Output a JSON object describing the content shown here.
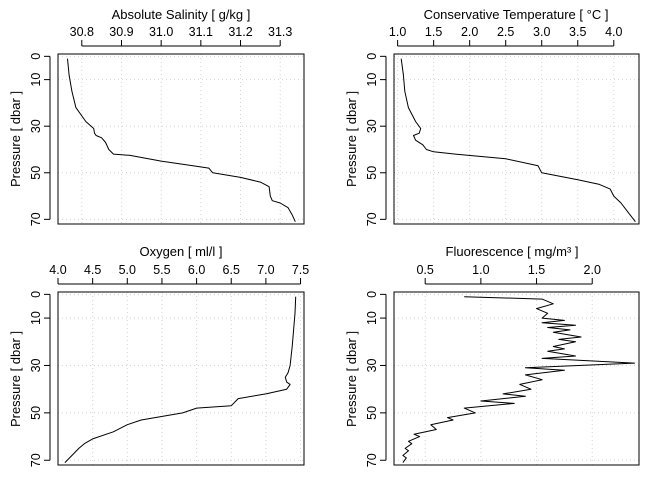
{
  "chart_data": [
    {
      "type": "line",
      "title": "Absolute Salinity [ g/kg ]",
      "xlabel": "Absolute Salinity [ g/kg ]",
      "ylabel": "Pressure [ dbar ]",
      "xlim": [
        30.74,
        31.36
      ],
      "ylim": [
        72,
        -1
      ],
      "xticks": [
        "30.8",
        "30.9",
        "31.0",
        "31.1",
        "31.2",
        "31.3"
      ],
      "yticks": [
        "0",
        "10",
        "30",
        "50",
        "70"
      ],
      "grid": true,
      "x_axis_position": "top",
      "series": [
        {
          "x": [
            30.764,
            30.768,
            30.775,
            30.785,
            30.81,
            30.83,
            30.832,
            30.836,
            30.85,
            30.86,
            30.868,
            30.88,
            30.92,
            31.0,
            31.08,
            31.12,
            31.13,
            31.2,
            31.25,
            31.272,
            31.275,
            31.28,
            31.3,
            31.32,
            31.33,
            31.338
          ],
          "y": [
            1,
            8,
            15,
            22,
            28,
            31,
            33,
            34,
            35,
            37,
            40,
            42,
            42.5,
            45,
            47,
            48,
            50,
            52,
            54,
            56,
            60,
            62,
            63,
            65,
            68,
            71
          ]
        }
      ]
    },
    {
      "type": "line",
      "title": "Conservative Temperature [ °C ]",
      "xlabel": "Conservative Temperature [ °C ]",
      "ylabel": "Pressure [ dbar ]",
      "xlim": [
        0.95,
        4.35
      ],
      "ylim": [
        72,
        -1
      ],
      "xticks": [
        "1.0",
        "1.5",
        "2.0",
        "2.5",
        "3.0",
        "3.5",
        "4.0"
      ],
      "yticks": [
        "0",
        "10",
        "30",
        "50",
        "70"
      ],
      "grid": true,
      "x_axis_position": "top",
      "series": [
        {
          "x": [
            1.05,
            1.08,
            1.1,
            1.15,
            1.25,
            1.32,
            1.3,
            1.22,
            1.25,
            1.35,
            1.4,
            1.5,
            1.8,
            2.5,
            2.95,
            3.0,
            3.5,
            3.8,
            3.95,
            4.0,
            4.1,
            4.2,
            4.3
          ],
          "y": [
            1,
            8,
            15,
            22,
            28,
            31,
            33,
            34,
            36,
            38,
            40,
            41,
            42,
            44,
            47,
            50,
            53,
            55,
            57,
            60,
            63,
            67,
            71
          ]
        }
      ]
    },
    {
      "type": "line",
      "title": "Oxygen [ ml/l ]",
      "xlabel": "Oxygen [ ml/l ]",
      "ylabel": "Pressure [ dbar ]",
      "xlim": [
        4.0,
        7.55
      ],
      "ylim": [
        72,
        -1
      ],
      "xticks": [
        "4.0",
        "4.5",
        "5.0",
        "5.5",
        "6.0",
        "6.5",
        "7.0",
        "7.5"
      ],
      "yticks": [
        "0",
        "10",
        "30",
        "50",
        "70"
      ],
      "grid": true,
      "x_axis_position": "top",
      "series": [
        {
          "x": [
            7.43,
            7.42,
            7.4,
            7.38,
            7.35,
            7.32,
            7.28,
            7.3,
            7.35,
            7.3,
            7.0,
            6.6,
            6.5,
            6.0,
            5.8,
            5.2,
            5.0,
            4.8,
            4.5,
            4.38,
            4.3,
            4.2,
            4.1
          ],
          "y": [
            1,
            8,
            15,
            22,
            30,
            33,
            35,
            37,
            38,
            40,
            42,
            44,
            47,
            48,
            50,
            53,
            55,
            58,
            61,
            63,
            65,
            68,
            71
          ]
        }
      ]
    },
    {
      "type": "line",
      "title": "Fluorescence [ mg/m³ ]",
      "xlabel": "Fluorescence [ mg/m³ ]",
      "ylabel": "Pressure [ dbar ]",
      "xlim": [
        0.22,
        2.42
      ],
      "ylim": [
        72,
        -1
      ],
      "xticks": [
        "0.5",
        "1.0",
        "1.5",
        "2.0"
      ],
      "yticks": [
        "0",
        "10",
        "30",
        "50",
        "70"
      ],
      "grid": true,
      "x_axis_position": "top",
      "series": [
        {
          "x": [
            0.85,
            1.55,
            1.65,
            1.5,
            1.6,
            1.55,
            1.75,
            1.55,
            1.85,
            1.6,
            1.8,
            1.65,
            1.9,
            1.7,
            1.85,
            1.65,
            1.75,
            1.6,
            1.85,
            1.55,
            2.38,
            1.4,
            1.75,
            1.4,
            1.55,
            1.35,
            1.45,
            1.2,
            1.4,
            1.0,
            1.3,
            0.85,
            0.95,
            0.7,
            0.75,
            0.55,
            0.6,
            0.4,
            0.45,
            0.35,
            0.38,
            0.32,
            0.35,
            0.3,
            0.33,
            0.3
          ],
          "y": [
            1,
            2,
            4,
            6,
            8,
            10,
            11,
            12,
            13,
            14,
            15,
            16,
            18,
            19,
            20,
            22,
            23,
            24,
            26,
            27,
            29,
            31,
            32,
            34,
            36,
            38,
            40,
            42,
            43,
            45,
            46,
            48,
            50,
            52,
            53,
            55,
            57,
            59,
            60,
            62,
            63,
            65,
            66,
            68,
            69,
            71
          ]
        }
      ]
    }
  ]
}
